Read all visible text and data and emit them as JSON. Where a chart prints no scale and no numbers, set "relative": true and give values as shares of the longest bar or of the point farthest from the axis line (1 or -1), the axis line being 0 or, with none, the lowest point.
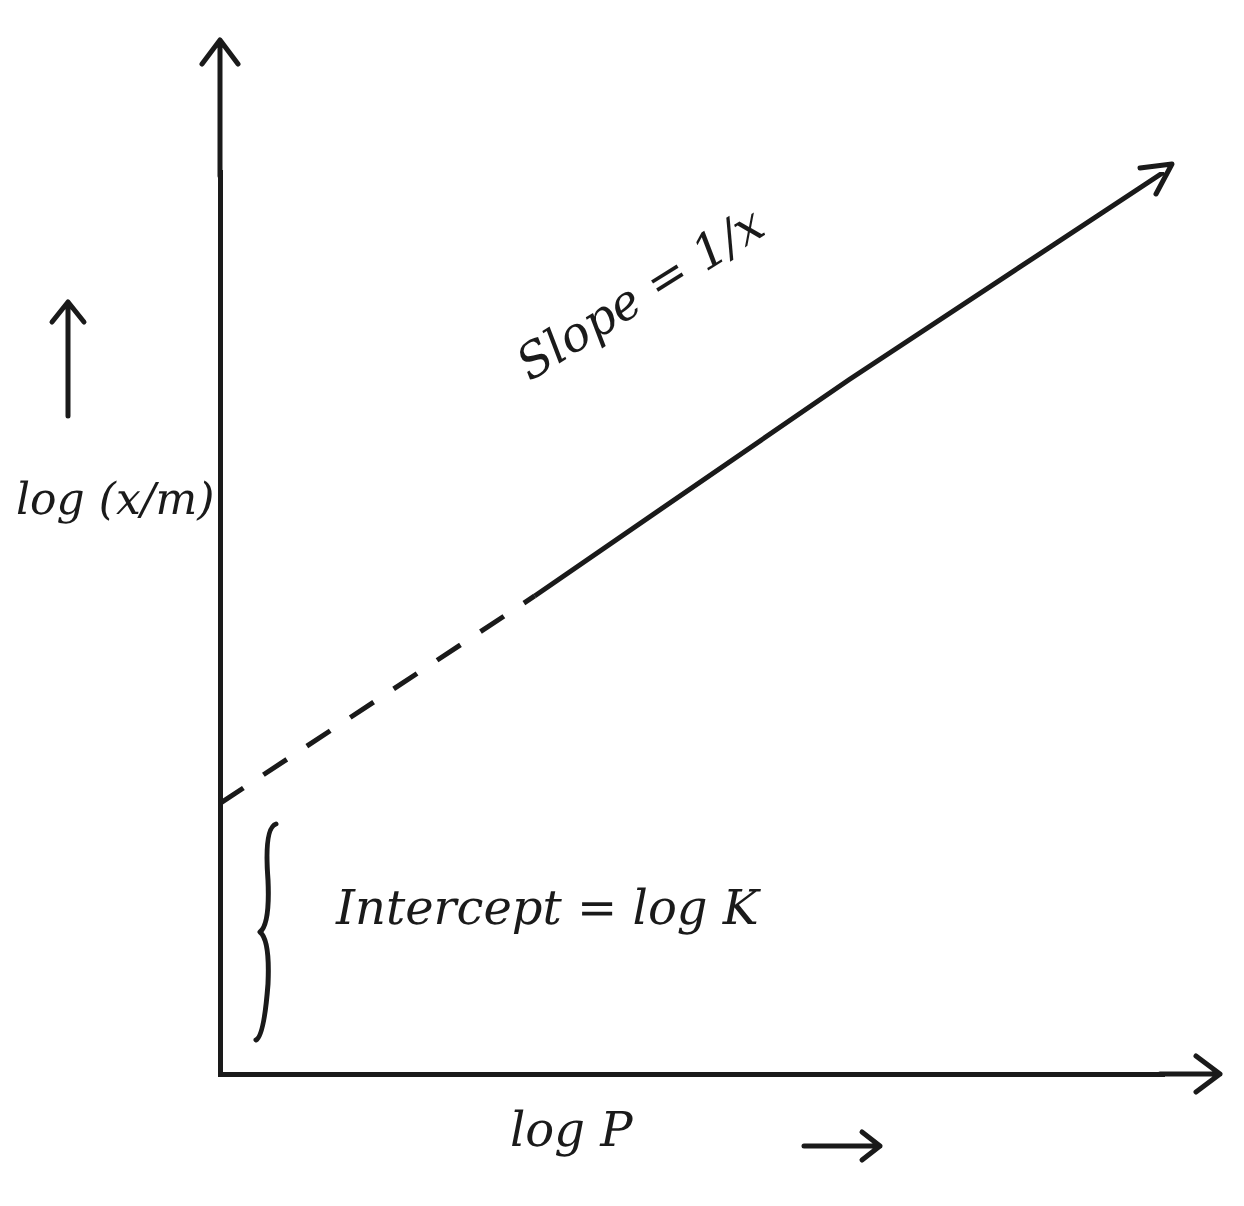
{
  "chart_data": {
    "type": "line",
    "relative": true,
    "xlabel": "log P",
    "ylabel": "log (x/m)",
    "categories": [
      null,
      null,
      null,
      null
    ],
    "series": [
      {
        "color": "#1a1a1a",
        "line_style": [
          "dashed",
          "solid",
          "solid"
        ],
        "values": [
          0.3,
          0.53,
          0.77,
          1
        ]
      }
    ],
    "annotations": [
      "Slope = 1/x",
      "Intercept = log K"
    ],
    "marker": "none",
    "grid": false,
    "legend": false
  }
}
